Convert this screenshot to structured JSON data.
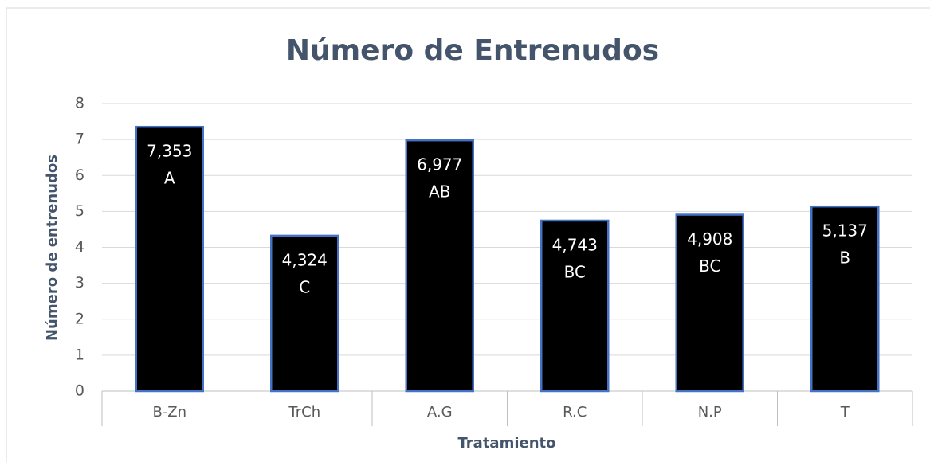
{
  "chart_data": {
    "type": "bar",
    "title": "Número de Entrenudos",
    "x_label": "Tratamiento",
    "y_label": "Número de entrenudos",
    "categories": [
      "B-Zn",
      "TrCh",
      "A.G",
      "R.C",
      "N.P",
      "T"
    ],
    "values": [
      7.353,
      4.324,
      6.977,
      4.743,
      4.908,
      5.137
    ],
    "value_labels": [
      "7,353",
      "4,324",
      "6,977",
      "4,743",
      "4,908",
      "5,137"
    ],
    "annotations": [
      "A",
      "C",
      "AB",
      "BC",
      "BC",
      "B"
    ],
    "color": "#000000",
    "edge_color": "#4472c4",
    "ylim": [
      0,
      8
    ],
    "yticks": [
      0,
      1,
      2,
      3,
      4,
      5,
      6,
      7,
      8
    ],
    "grid": true
  }
}
